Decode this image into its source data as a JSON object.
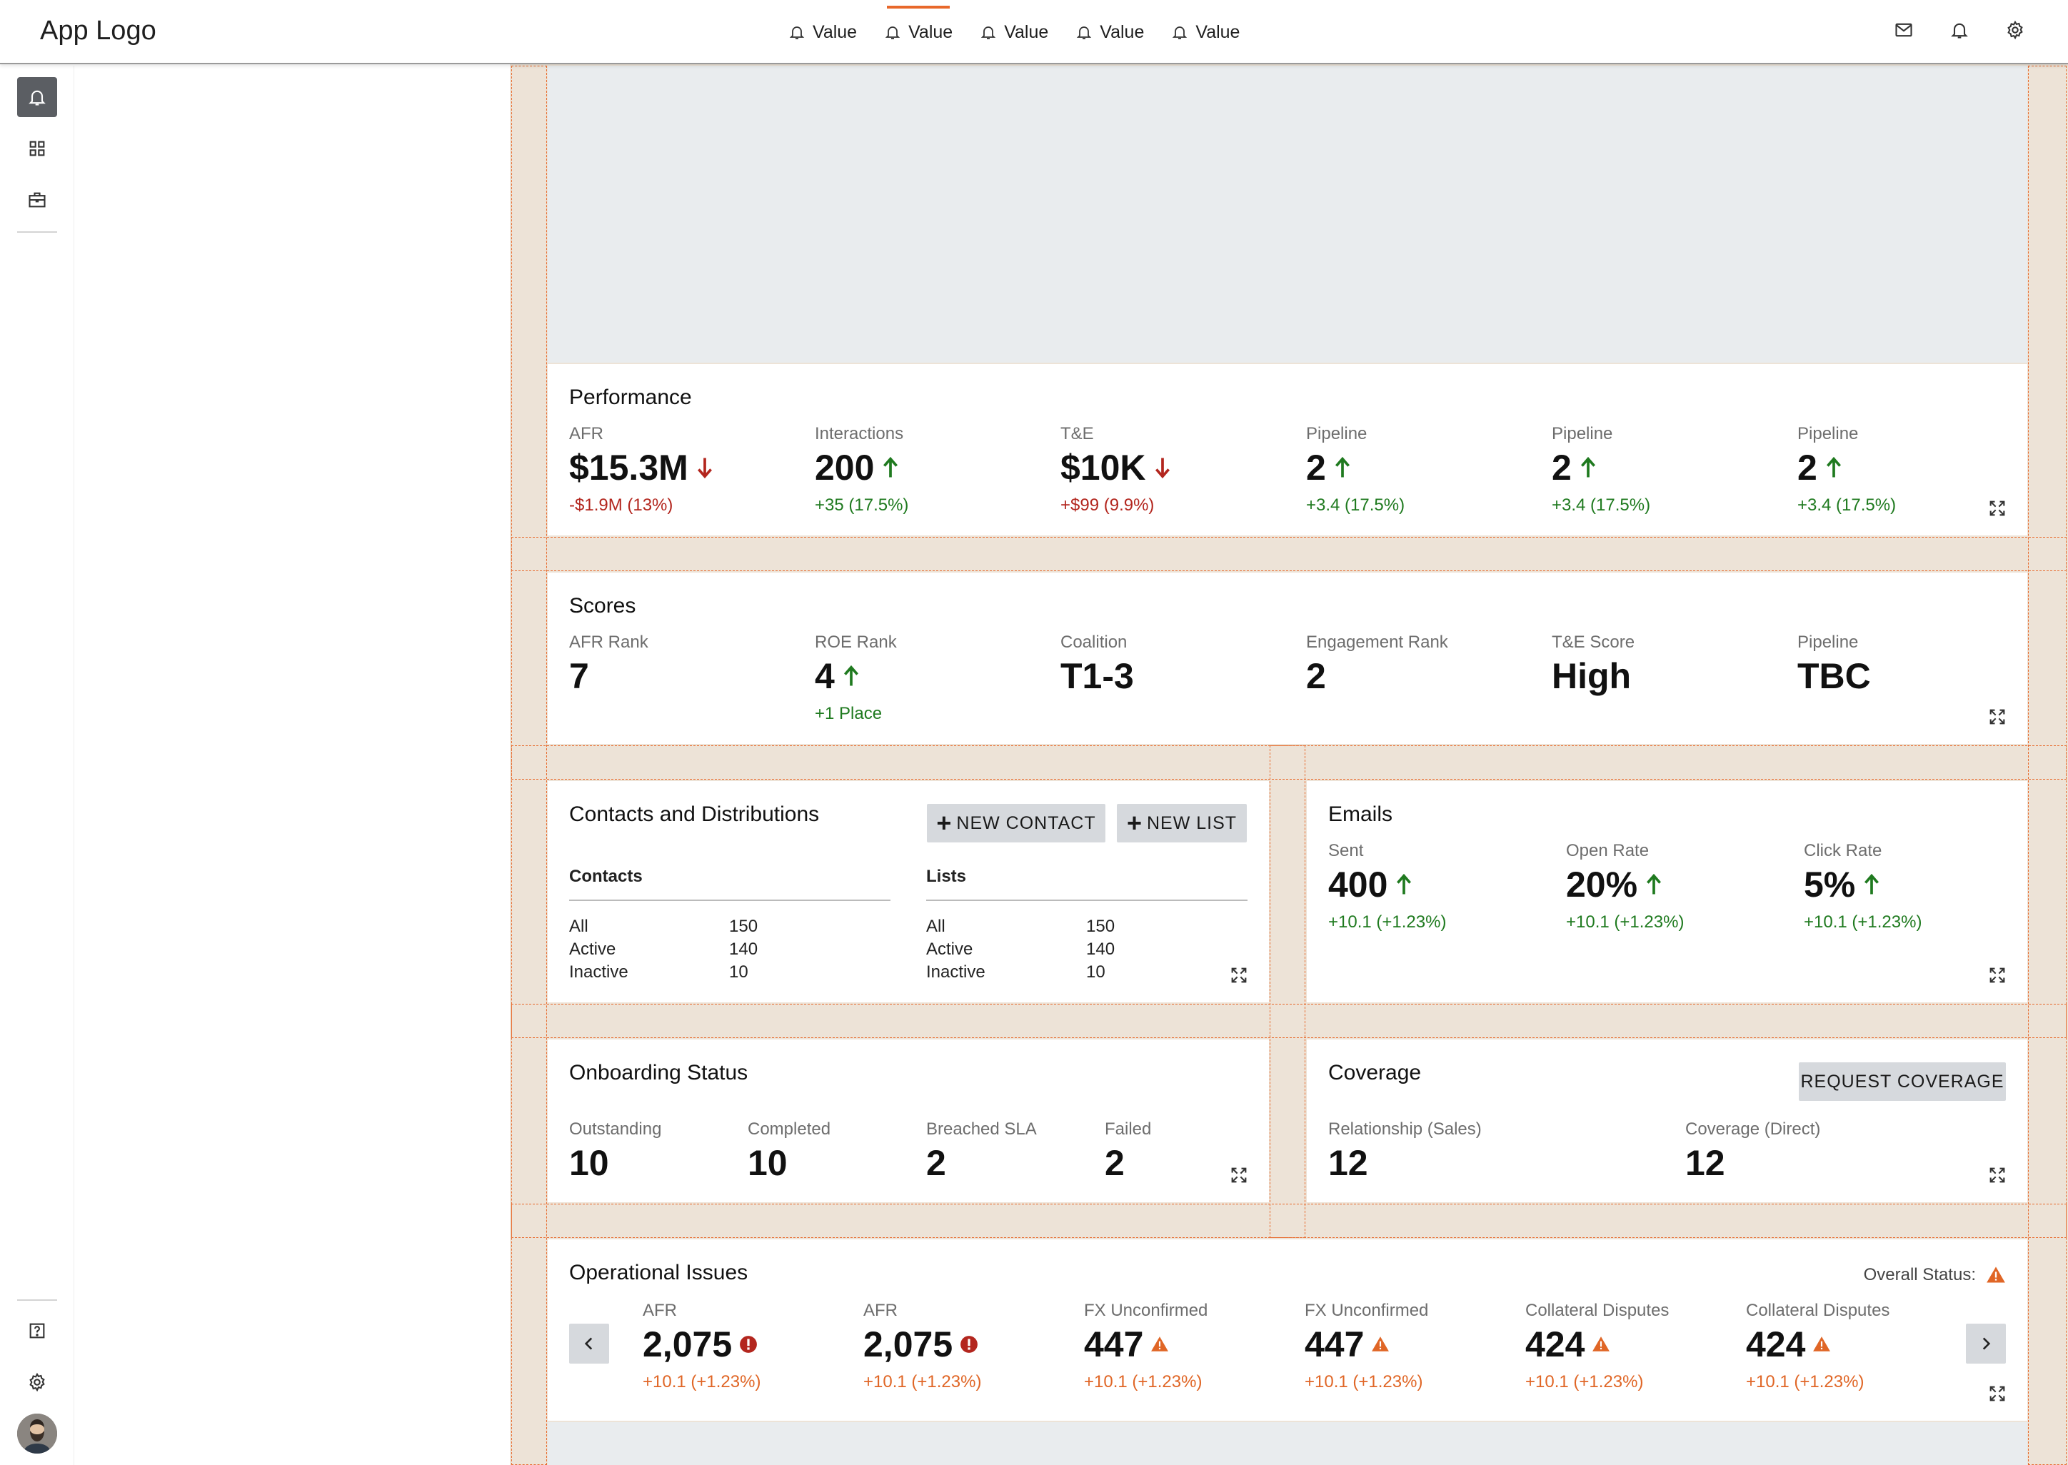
{
  "header": {
    "logo": "App Logo",
    "tabs": [
      {
        "label": "Value"
      },
      {
        "label": "Value"
      },
      {
        "label": "Value"
      },
      {
        "label": "Value"
      },
      {
        "label": "Value"
      }
    ],
    "active_tab": 1
  },
  "colors": {
    "accent": "#e8682a",
    "positive": "#1f7a1f",
    "negative": "#b3261e",
    "warning": "#e06626"
  },
  "performance": {
    "title": "Performance",
    "stats": [
      {
        "label": "AFR",
        "value": "$15.3M",
        "trend": "down",
        "delta": "-$1.9M (13%)",
        "tone": "neg"
      },
      {
        "label": "Interactions",
        "value": "200",
        "trend": "up",
        "delta": "+35 (17.5%)",
        "tone": "pos"
      },
      {
        "label": "T&E",
        "value": "$10K",
        "trend": "down",
        "delta": "+$99 (9.9%)",
        "tone": "neg"
      },
      {
        "label": "Pipeline",
        "value": "2",
        "trend": "up",
        "delta": "+3.4 (17.5%)",
        "tone": "pos"
      },
      {
        "label": "Pipeline",
        "value": "2",
        "trend": "up",
        "delta": "+3.4 (17.5%)",
        "tone": "pos"
      },
      {
        "label": "Pipeline",
        "value": "2",
        "trend": "up",
        "delta": "+3.4 (17.5%)",
        "tone": "pos"
      }
    ]
  },
  "scores": {
    "title": "Scores",
    "stats": [
      {
        "label": "AFR Rank",
        "value": "7"
      },
      {
        "label": "ROE Rank",
        "value": "4",
        "trend": "up",
        "delta": "+1 Place",
        "tone": "pos"
      },
      {
        "label": "Coalition",
        "value": "T1-3"
      },
      {
        "label": "Engagement Rank",
        "value": "2"
      },
      {
        "label": "T&E Score",
        "value": "High"
      },
      {
        "label": "Pipeline",
        "value": "TBC"
      }
    ]
  },
  "contacts": {
    "title": "Contacts and Distributions",
    "new_contact_label": "NEW CONTACT",
    "new_list_label": "NEW LIST",
    "contacts_heading": "Contacts",
    "lists_heading": "Lists",
    "contacts_rows": [
      {
        "label": "All",
        "value": "150"
      },
      {
        "label": "Active",
        "value": "140"
      },
      {
        "label": "Inactive",
        "value": "10"
      }
    ],
    "lists_rows": [
      {
        "label": "All",
        "value": "150"
      },
      {
        "label": "Active",
        "value": "140"
      },
      {
        "label": "Inactive",
        "value": "10"
      }
    ]
  },
  "emails": {
    "title": "Emails",
    "stats": [
      {
        "label": "Sent",
        "value": "400",
        "trend": "up",
        "delta": "+10.1 (+1.23%)",
        "tone": "pos"
      },
      {
        "label": "Open Rate",
        "value": "20%",
        "trend": "up",
        "delta": "+10.1 (+1.23%)",
        "tone": "pos"
      },
      {
        "label": "Click Rate",
        "value": "5%",
        "trend": "up",
        "delta": "+10.1 (+1.23%)",
        "tone": "pos"
      }
    ]
  },
  "onboarding": {
    "title": "Onboarding Status",
    "stats": [
      {
        "label": "Outstanding",
        "value": "10"
      },
      {
        "label": "Completed",
        "value": "10"
      },
      {
        "label": "Breached SLA",
        "value": "2"
      },
      {
        "label": "Failed",
        "value": "2"
      }
    ]
  },
  "coverage": {
    "title": "Coverage",
    "request_label": "REQUEST COVERAGE",
    "stats": [
      {
        "label": "Relationship (Sales)",
        "value": "12"
      },
      {
        "label": "Coverage (Direct)",
        "value": "12"
      }
    ]
  },
  "operational": {
    "title": "Operational Issues",
    "overall_status_label": "Overall Status:",
    "stats": [
      {
        "label": "AFR",
        "value": "2,075",
        "status": "error",
        "delta": "+10.1 (+1.23%)"
      },
      {
        "label": "AFR",
        "value": "2,075",
        "status": "error",
        "delta": "+10.1 (+1.23%)"
      },
      {
        "label": "FX Unconfirmed",
        "value": "447",
        "status": "warning",
        "delta": "+10.1 (+1.23%)"
      },
      {
        "label": "FX Unconfirmed",
        "value": "447",
        "status": "warning",
        "delta": "+10.1 (+1.23%)"
      },
      {
        "label": "Collateral Disputes",
        "value": "424",
        "status": "warning",
        "delta": "+10.1 (+1.23%)"
      },
      {
        "label": "Collateral Disputes",
        "value": "424",
        "status": "warning",
        "delta": "+10.1 (+1.23%)"
      }
    ]
  }
}
